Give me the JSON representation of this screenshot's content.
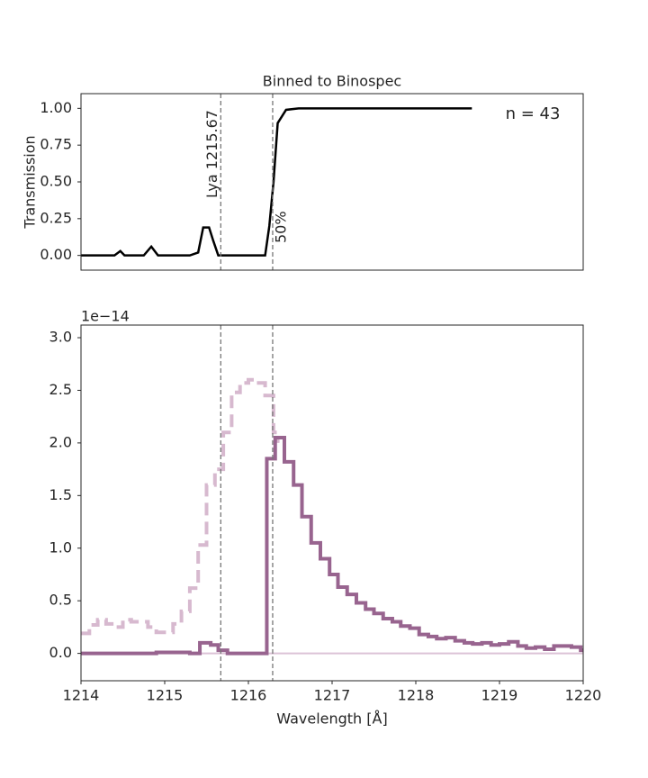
{
  "chart_data": [
    {
      "type": "line",
      "title": "Binned to Binospec",
      "ylabel": "Transmission",
      "xlim": [
        1214,
        1220
      ],
      "ylim": [
        -0.1,
        1.1
      ],
      "yticks": [
        {
          "value": 0,
          "label": "0.00"
        },
        {
          "value": 0.25,
          "label": "0.25"
        },
        {
          "value": 0.5,
          "label": "0.50"
        },
        {
          "value": 0.75,
          "label": "0.75"
        },
        {
          "value": 1,
          "label": "1.00"
        }
      ],
      "vlines": [
        1215.67,
        1216.29
      ],
      "vline_color": "#777777",
      "annotations": [
        "Lya 1215.67",
        "50%",
        "n = 43"
      ],
      "series": [
        {
          "color": "#000000",
          "x": [
            1214,
            1214.4,
            1214.47,
            1214.52,
            1214.75,
            1214.84,
            1214.92,
            1215.3,
            1215.4,
            1215.46,
            1215.53,
            1215.58,
            1215.64,
            1215.8,
            1216.2,
            1216.25,
            1216.3,
            1216.35,
            1216.45,
            1216.6,
            1218.67
          ],
          "values": [
            0,
            0,
            0.03,
            0,
            0,
            0.06,
            0,
            0,
            0.02,
            0.19,
            0.19,
            0.1,
            0,
            0,
            0,
            0.2,
            0.5,
            0.9,
            0.99,
            1,
            1
          ]
        }
      ]
    },
    {
      "type": "step",
      "xlabel": "Wavelength [Å]",
      "offset_label": "1e−14",
      "xlim": [
        1214,
        1220
      ],
      "ylim": [
        -0.26,
        3.12
      ],
      "xticks": [
        1214,
        1215,
        1216,
        1217,
        1218,
        1219,
        1220
      ],
      "yticks": [
        {
          "value": 0,
          "label": "0.0"
        },
        0.5,
        {
          "value": 1,
          "label": "1.0"
        },
        1.5,
        {
          "value": 2,
          "label": "2.0"
        },
        2.5,
        {
          "value": 3,
          "label": "3.0"
        }
      ],
      "vlines": [
        1215.67,
        1216.29
      ],
      "vline_color": "#777777",
      "series": [
        {
          "color": "#dcc3d6",
          "style": "solid",
          "width": 2,
          "x": [
            1214,
            1220
          ],
          "values": [
            0,
            0.02
          ]
        },
        {
          "color": "#d7b9cf",
          "style": "dashed",
          "width": 4,
          "x": [
            1214,
            1214.1,
            1214.2,
            1214.3,
            1214.4,
            1214.5,
            1214.6,
            1214.8,
            1214.9,
            1215,
            1215.1,
            1215.2,
            1215.3,
            1215.4,
            1215.5,
            1215.6,
            1215.7,
            1215.8,
            1215.9,
            1216,
            1216.1,
            1216.2,
            1216.3,
            1216.35
          ],
          "values": [
            0.19,
            0.27,
            0.32,
            0.28,
            0.25,
            0.32,
            0.3,
            0.25,
            0.2,
            0.2,
            0.28,
            0.4,
            0.62,
            1.03,
            1.6,
            1.75,
            2.1,
            2.48,
            2.57,
            2.6,
            2.57,
            2.45,
            2.1,
            2.0
          ]
        },
        {
          "color": "#98648f",
          "style": "solid",
          "width": 4,
          "x": [
            1214,
            1214.9,
            1215.3,
            1215.42,
            1215.55,
            1215.64,
            1215.75,
            1216.22,
            1216.32,
            1216.43,
            1216.54,
            1216.64,
            1216.75,
            1216.86,
            1216.97,
            1217.07,
            1217.18,
            1217.29,
            1217.4,
            1217.5,
            1217.61,
            1217.72,
            1217.82,
            1217.93,
            1218.04,
            1218.15,
            1218.25,
            1218.36,
            1218.47,
            1218.58,
            1218.68,
            1218.79,
            1218.9,
            1219,
            1219.11,
            1219.22,
            1219.32,
            1219.43,
            1219.54,
            1219.65,
            1219.75,
            1219.86,
            1219.97,
            1220
          ],
          "values": [
            0,
            0.01,
            0,
            0.1,
            0.08,
            0.03,
            0,
            1.85,
            2.05,
            1.82,
            1.6,
            1.3,
            1.05,
            0.9,
            0.75,
            0.63,
            0.56,
            0.48,
            0.42,
            0.38,
            0.33,
            0.3,
            0.26,
            0.24,
            0.18,
            0.16,
            0.14,
            0.15,
            0.12,
            0.1,
            0.09,
            0.1,
            0.08,
            0.09,
            0.11,
            0.07,
            0.05,
            0.06,
            0.04,
            0.07,
            0.07,
            0.06,
            0.03,
            0.03
          ]
        }
      ]
    }
  ]
}
